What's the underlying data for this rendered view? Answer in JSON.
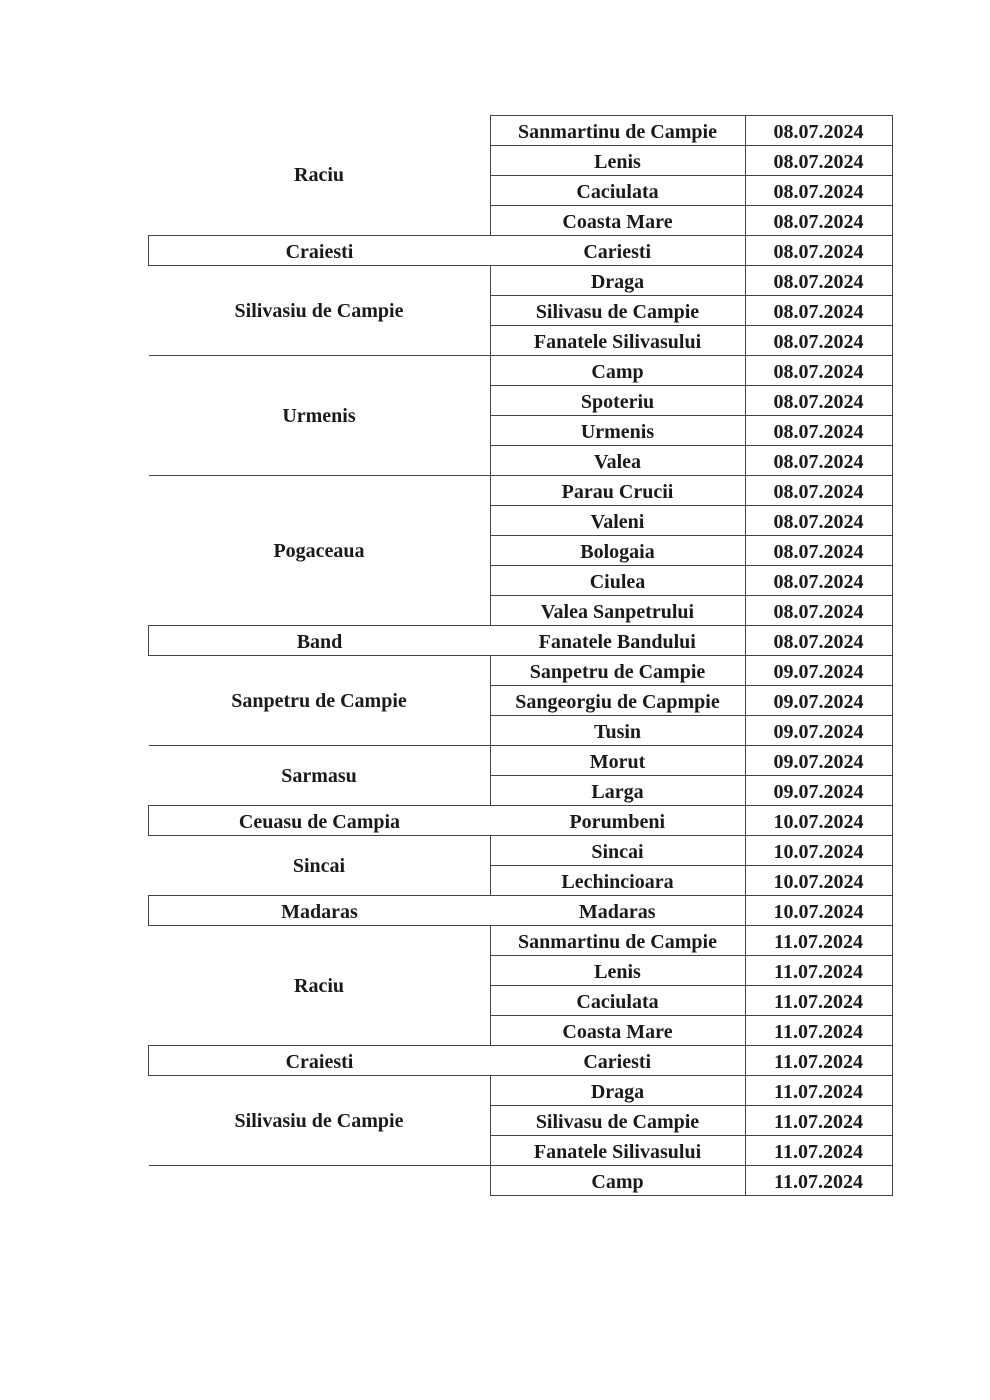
{
  "groups": [
    {
      "commune": "Raciu",
      "rows": [
        [
          "Sanmartinu de Campie",
          "08.07.2024"
        ],
        [
          "Lenis",
          "08.07.2024"
        ],
        [
          "Caciulata",
          "08.07.2024"
        ],
        [
          "Coasta Mare",
          "08.07.2024"
        ]
      ]
    },
    {
      "commune": "Craiesti",
      "rows": [
        [
          "Cariesti",
          "08.07.2024"
        ]
      ]
    },
    {
      "commune": "Silivasiu de Campie",
      "rows": [
        [
          "Draga",
          "08.07.2024"
        ],
        [
          "Silivasu de Campie",
          "08.07.2024"
        ],
        [
          "Fanatele Silivasului",
          "08.07.2024"
        ]
      ]
    },
    {
      "commune": "Urmenis",
      "rows": [
        [
          "Camp",
          "08.07.2024"
        ],
        [
          "Spoteriu",
          "08.07.2024"
        ],
        [
          "Urmenis",
          "08.07.2024"
        ],
        [
          "Valea",
          "08.07.2024"
        ]
      ]
    },
    {
      "commune": "Pogaceaua",
      "rows": [
        [
          "Parau Crucii",
          "08.07.2024"
        ],
        [
          "Valeni",
          "08.07.2024"
        ],
        [
          "Bologaia",
          "08.07.2024"
        ],
        [
          "Ciulea",
          "08.07.2024"
        ],
        [
          "Valea Sanpetrului",
          "08.07.2024"
        ]
      ]
    },
    {
      "commune": "Band",
      "rows": [
        [
          "Fanatele Bandului",
          "08.07.2024"
        ]
      ]
    },
    {
      "commune": "Sanpetru de Campie",
      "rows": [
        [
          "Sanpetru de Campie",
          "09.07.2024"
        ],
        [
          "Sangeorgiu de Capmpie",
          "09.07.2024"
        ],
        [
          "Tusin",
          "09.07.2024"
        ]
      ]
    },
    {
      "commune": "Sarmasu",
      "rows": [
        [
          "Morut",
          "09.07.2024"
        ],
        [
          "Larga",
          "09.07.2024"
        ]
      ]
    },
    {
      "commune": "Ceuasu de Campia",
      "rows": [
        [
          "Porumbeni",
          "10.07.2024"
        ]
      ]
    },
    {
      "commune": "Sincai",
      "rows": [
        [
          "Sincai",
          "10.07.2024"
        ],
        [
          "Lechincioara",
          "10.07.2024"
        ]
      ]
    },
    {
      "commune": "Madaras",
      "rows": [
        [
          "Madaras",
          "10.07.2024"
        ]
      ]
    },
    {
      "commune": "Raciu",
      "rows": [
        [
          "Sanmartinu de Campie",
          "11.07.2024"
        ],
        [
          "Lenis",
          "11.07.2024"
        ],
        [
          "Caciulata",
          "11.07.2024"
        ],
        [
          "Coasta Mare",
          "11.07.2024"
        ]
      ]
    },
    {
      "commune": "Craiesti",
      "rows": [
        [
          "Cariesti",
          "11.07.2024"
        ]
      ]
    },
    {
      "commune": "Silivasiu de Campie",
      "rows": [
        [
          "Draga",
          "11.07.2024"
        ],
        [
          "Silivasu de Campie",
          "11.07.2024"
        ],
        [
          "Fanatele Silivasului",
          "11.07.2024"
        ]
      ]
    },
    {
      "commune": "",
      "rows": [
        [
          "Camp",
          "11.07.2024"
        ]
      ]
    }
  ]
}
